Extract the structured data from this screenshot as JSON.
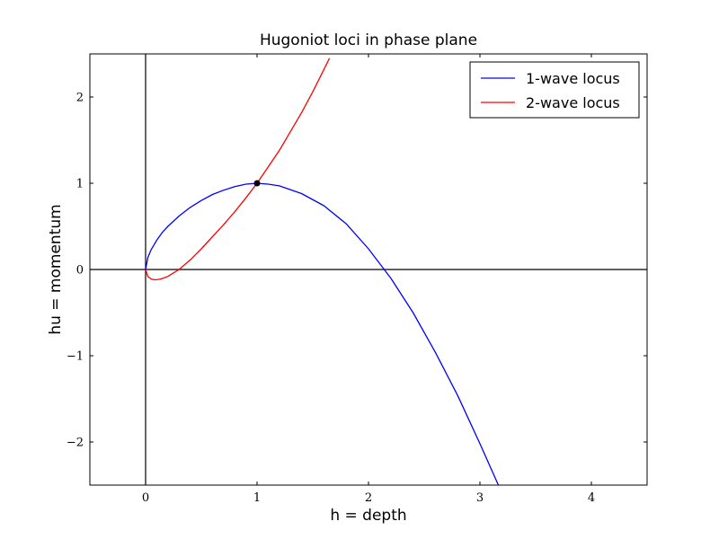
{
  "chart_data": {
    "type": "line",
    "title": "Hugoniot loci in phase plane",
    "xlabel": "h = depth",
    "ylabel": "hu = momentum",
    "xlim": [
      -0.5,
      4.5
    ],
    "ylim": [
      -2.5,
      2.5
    ],
    "xticks": [
      0,
      1,
      2,
      3,
      4
    ],
    "xtick_labels": [
      "0",
      "1",
      "2",
      "3",
      "4"
    ],
    "yticks": [
      -2,
      -1,
      0,
      1,
      2
    ],
    "ytick_labels": [
      "−2",
      "−1",
      "0",
      "1",
      "2"
    ],
    "grid": false,
    "legend_position": "top-right",
    "reference_lines": {
      "x": 0,
      "y": 0,
      "color": "#000000"
    },
    "series": [
      {
        "name": "1-wave locus",
        "color": "#0000ff",
        "x": [
          0,
          0.02,
          0.05,
          0.1,
          0.15,
          0.2,
          0.3,
          0.4,
          0.5,
          0.6,
          0.7,
          0.8,
          0.9,
          1.0,
          1.1,
          1.2,
          1.4,
          1.6,
          1.8,
          2.0,
          2.2,
          2.4,
          2.6,
          2.8,
          3.0,
          3.2
        ],
        "y": [
          0,
          0.14,
          0.23,
          0.34,
          0.43,
          0.5,
          0.62,
          0.72,
          0.8,
          0.87,
          0.92,
          0.96,
          0.99,
          1.0,
          0.99,
          0.97,
          0.88,
          0.74,
          0.53,
          0.24,
          -0.1,
          -0.5,
          -0.96,
          -1.46,
          -2.02,
          -2.6
        ]
      },
      {
        "name": "2-wave locus",
        "color": "#ff0000",
        "x": [
          0,
          0.02,
          0.05,
          0.08,
          0.12,
          0.16,
          0.2,
          0.25,
          0.3,
          0.4,
          0.5,
          0.6,
          0.7,
          0.8,
          0.9,
          1.0,
          1.1,
          1.2,
          1.3,
          1.4,
          1.5,
          1.6,
          1.65
        ],
        "y": [
          0,
          -0.08,
          -0.11,
          -0.12,
          -0.115,
          -0.1,
          -0.08,
          -0.04,
          0.0,
          0.11,
          0.24,
          0.38,
          0.52,
          0.67,
          0.83,
          1.0,
          1.19,
          1.38,
          1.6,
          1.82,
          2.06,
          2.32,
          2.45
        ]
      }
    ],
    "points": [
      {
        "x": 1,
        "y": 1,
        "color": "#000000"
      }
    ]
  }
}
